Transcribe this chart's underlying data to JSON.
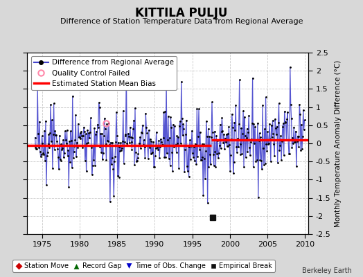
{
  "title": "KITTILA PULJU",
  "subtitle": "Difference of Station Temperature Data from Regional Average",
  "ylabel": "Monthly Temperature Anomaly Difference (°C)",
  "xlabel_bottom": "Berkeley Earth",
  "ylim": [
    -2.5,
    2.5
  ],
  "xlim": [
    1973.0,
    2010.5
  ],
  "xticks": [
    1975,
    1980,
    1985,
    1990,
    1995,
    2000,
    2005,
    2010
  ],
  "yticks": [
    -2.5,
    -2,
    -1.5,
    -1,
    -0.5,
    0,
    0.5,
    1,
    1.5,
    2,
    2.5
  ],
  "bias1": -0.05,
  "bias1_start": 1973.0,
  "bias1_end": 1997.5,
  "bias2": 0.1,
  "bias2_start": 1997.5,
  "bias2_end": 2010.5,
  "empirical_break_x": 1997.7,
  "empirical_break_y": -2.05,
  "qc_fail_x": 1983.5,
  "qc_fail_y": 0.55,
  "background_color": "#d8d8d8",
  "plot_bg_color": "#ffffff",
  "grid_color": "#bbbbbb",
  "line_color": "#4444cc",
  "dot_color": "#000000",
  "bias_color": "#ff0000",
  "title_fontsize": 12,
  "subtitle_fontsize": 8,
  "tick_fontsize": 8,
  "legend_fontsize": 7.5,
  "seed": 42
}
